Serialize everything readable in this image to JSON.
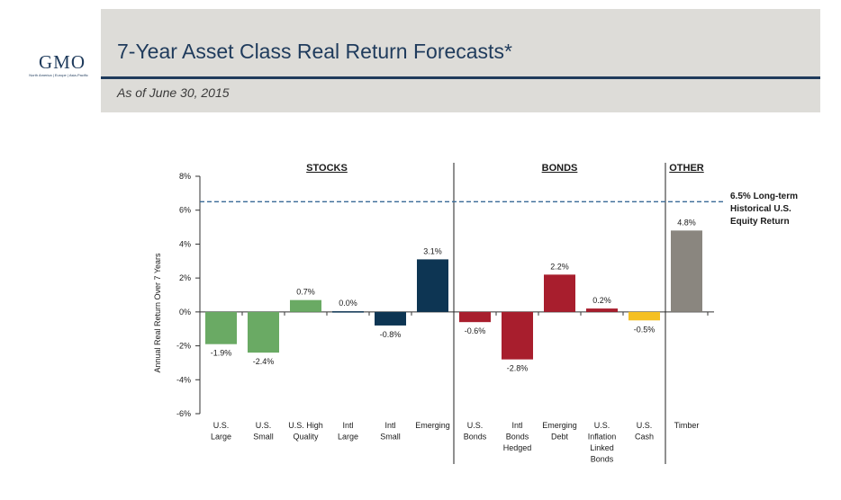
{
  "header": {
    "logo": "GMO",
    "logo_subtitle": "North America | Europe | Asia-Pacific",
    "title": "7-Year Asset Class Real Return Forecasts*",
    "subtitle": "As of June 30, 2015"
  },
  "colors": {
    "header_band": "#dddcd8",
    "navy": "#1f3b5c",
    "stocks_green": "#6aaa64",
    "stocks_navy": "#0d3553",
    "bonds_red": "#a81e2d",
    "cash_yellow": "#f5c022",
    "timber_gray": "#8a867f",
    "reference_line": "#3a6a96"
  },
  "chart_data": {
    "type": "bar",
    "title": "",
    "ylabel": "Annual Real Return Over 7 Years",
    "xlabel": "",
    "ylim": [
      -6,
      8
    ],
    "yticks": [
      8,
      6,
      4,
      2,
      0,
      -2,
      -4,
      -6
    ],
    "ytick_labels": [
      "8%",
      "6%",
      "4%",
      "2%",
      "0%",
      "-2%",
      "-4%",
      "-6%"
    ],
    "groups": [
      {
        "label": "STOCKS",
        "start": 0,
        "end": 5
      },
      {
        "label": "BONDS",
        "start": 6,
        "end": 10
      },
      {
        "label": "OTHER",
        "start": 11,
        "end": 11
      }
    ],
    "bars": [
      {
        "label": [
          "U.S.",
          "Large"
        ],
        "value": -1.9,
        "value_label": "-1.9%",
        "color": "#6aaa64"
      },
      {
        "label": [
          "U.S.",
          "Small"
        ],
        "value": -2.4,
        "value_label": "-2.4%",
        "color": "#6aaa64"
      },
      {
        "label": [
          "U.S. High",
          "Quality"
        ],
        "value": 0.7,
        "value_label": "0.7%",
        "color": "#6aaa64"
      },
      {
        "label": [
          "Intl",
          "Large"
        ],
        "value": 0.04,
        "value_label": "0.0%",
        "color": "#0d3553"
      },
      {
        "label": [
          "Intl",
          "Small"
        ],
        "value": -0.8,
        "value_label": "-0.8%",
        "color": "#0d3553"
      },
      {
        "label": [
          "Emerging"
        ],
        "value": 3.1,
        "value_label": "3.1%",
        "color": "#0d3553"
      },
      {
        "label": [
          "U.S.",
          "Bonds"
        ],
        "value": -0.6,
        "value_label": "-0.6%",
        "color": "#a81e2d"
      },
      {
        "label": [
          "Intl",
          "Bonds",
          "Hedged"
        ],
        "value": -2.8,
        "value_label": "-2.8%",
        "color": "#a81e2d"
      },
      {
        "label": [
          "Emerging",
          "Debt"
        ],
        "value": 2.2,
        "value_label": "2.2%",
        "color": "#a81e2d"
      },
      {
        "label": [
          "U.S.",
          "Inflation",
          "Linked",
          "Bonds"
        ],
        "value": 0.2,
        "value_label": "0.2%",
        "color": "#a81e2d"
      },
      {
        "label": [
          "U.S.",
          "Cash"
        ],
        "value": -0.5,
        "value_label": "-0.5%",
        "color": "#f5c022"
      },
      {
        "label": [
          "Timber"
        ],
        "value": 4.8,
        "value_label": "4.8%",
        "color": "#8a867f"
      }
    ],
    "reference_line": {
      "value": 6.5,
      "label": [
        "6.5% Long-term",
        "Historical U.S.",
        "Equity Return"
      ]
    }
  }
}
